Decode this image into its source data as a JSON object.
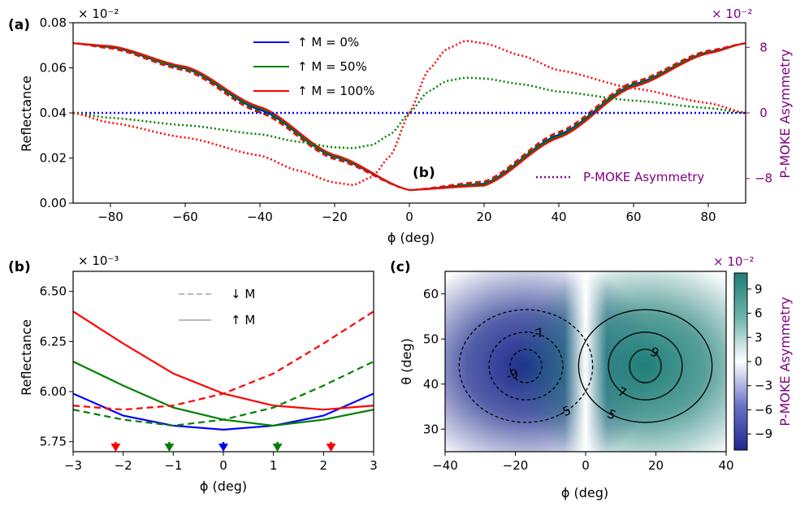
{
  "chart_data": [
    {
      "panel": "(a)",
      "type": "line",
      "xlabel": "ϕ (deg)",
      "ylabel": "Reflectance",
      "y2label": "P-MOKE Asymmetry",
      "xlim": [
        -90,
        90
      ],
      "ylim": [
        0.0,
        0.08
      ],
      "y2lim": [
        -11,
        11
      ],
      "x_ticks": [
        "−80",
        "−60",
        "−40",
        "−20",
        "0",
        "20",
        "40",
        "60",
        "80"
      ],
      "y_ticks": [
        "0.00",
        "0.02",
        "0.04",
        "0.06",
        "0.08"
      ],
      "y2_ticks": [
        "−8",
        "0",
        "8"
      ],
      "y_multiplier": "× 10⁻²",
      "y2_multiplier": "× 10⁻²",
      "annotation": "(b)",
      "legend": [
        "↑ M = 0%",
        "↑ M = 50%",
        "↑ M = 100%"
      ],
      "legend_asym": "P-MOKE Asymmetry",
      "series": [
        {
          "name": "↑ M = 0%",
          "color": "#0000ff",
          "style": "solid",
          "x": [
            -90,
            -80,
            -60,
            -40,
            -20,
            0,
            20,
            40,
            60,
            80,
            90
          ],
          "values": [
            0.0709,
            0.0692,
            0.0597,
            0.0414,
            0.0204,
            0.0058,
            0.0086,
            0.0303,
            0.0527,
            0.067,
            0.0709
          ]
        },
        {
          "name": "↑ M = 50%",
          "color": "#008000",
          "style": "solid",
          "x": [
            -90,
            -80,
            -60,
            -40,
            -20,
            0,
            20,
            40,
            60,
            80,
            90
          ],
          "values": [
            0.0709,
            0.0694,
            0.0601,
            0.042,
            0.0208,
            0.0058,
            0.0082,
            0.0297,
            0.0522,
            0.0667,
            0.0709
          ]
        },
        {
          "name": "↑ M = 100%",
          "color": "#ff0000",
          "style": "solid",
          "x": [
            -90,
            -80,
            -60,
            -40,
            -20,
            0,
            20,
            40,
            60,
            80,
            90
          ],
          "values": [
            0.0709,
            0.0697,
            0.0606,
            0.0427,
            0.0213,
            0.0058,
            0.0077,
            0.029,
            0.0516,
            0.0664,
            0.0709
          ]
        },
        {
          "name": "↓ M = 50%",
          "color": "#008000",
          "style": "dashed",
          "x": [
            -90,
            -80,
            -60,
            -40,
            -20,
            0,
            20,
            40,
            60,
            80,
            90
          ],
          "values": [
            0.0709,
            0.0689,
            0.0593,
            0.0408,
            0.0199,
            0.0058,
            0.0091,
            0.0309,
            0.0532,
            0.0673,
            0.0709
          ]
        },
        {
          "name": "↓ M = 100%",
          "color": "#ff0000",
          "style": "dashed",
          "x": [
            -90,
            -80,
            -60,
            -40,
            -20,
            0,
            20,
            40,
            60,
            80,
            90
          ],
          "values": [
            0.0709,
            0.0686,
            0.0588,
            0.0401,
            0.0194,
            0.0058,
            0.0096,
            0.0316,
            0.0538,
            0.0677,
            0.0709
          ]
        }
      ],
      "asymmetry_series": [
        {
          "name": "P-MOKE Asymmetry M = 0%",
          "color": "#0000ff",
          "x": [
            -90,
            0,
            90
          ],
          "values": [
            0,
            0,
            0
          ]
        },
        {
          "name": "P-MOKE Asymmetry M = 50%",
          "color": "#008000",
          "x": [
            -90,
            -80,
            -60,
            -40,
            -30,
            -20,
            -15,
            -10,
            -5,
            0,
            5,
            10,
            15,
            20,
            30,
            40,
            60,
            80,
            90
          ],
          "values": [
            0,
            -0.6,
            -1.5,
            -2.6,
            -3.5,
            -4.2,
            -4.3,
            -3.9,
            -2.6,
            0,
            2.6,
            3.9,
            4.3,
            4.2,
            3.5,
            2.6,
            1.5,
            0.6,
            0
          ]
        },
        {
          "name": "P-MOKE Asymmetry M = 100%",
          "color": "#ff0000",
          "x": [
            -90,
            -80,
            -60,
            -40,
            -30,
            -20,
            -15,
            -10,
            -5,
            0,
            5,
            10,
            15,
            20,
            30,
            40,
            60,
            80,
            90
          ],
          "values": [
            0,
            -1.2,
            -3.0,
            -5.2,
            -7.0,
            -8.5,
            -8.8,
            -7.8,
            -5.2,
            0,
            5.2,
            7.8,
            8.8,
            8.5,
            7.0,
            5.2,
            3.0,
            1.2,
            0
          ]
        }
      ]
    },
    {
      "panel": "(b)",
      "type": "line",
      "xlabel": "ϕ (deg)",
      "ylabel": "Reflectance",
      "xlim": [
        -3,
        3
      ],
      "ylim": [
        5.7,
        6.6
      ],
      "x_ticks": [
        "−3",
        "−2",
        "−1",
        "0",
        "1",
        "2",
        "3"
      ],
      "y_ticks": [
        "5.75",
        "6.00",
        "6.25",
        "6.50"
      ],
      "y_multiplier": "× 10⁻³",
      "legend": [
        "↓ M",
        "↑ M"
      ],
      "series": [
        {
          "name": "↑ M = 0%",
          "color": "#0000ff",
          "style": "solid",
          "x": [
            -3,
            -2,
            -1,
            0,
            1,
            2,
            3
          ],
          "values": [
            5.99,
            5.88,
            5.83,
            5.81,
            5.83,
            5.88,
            5.99
          ]
        },
        {
          "name": "↑ M = 50%",
          "color": "#008000",
          "style": "solid",
          "x": [
            -3,
            -2,
            -1,
            0,
            1,
            2,
            3
          ],
          "values": [
            6.15,
            6.03,
            5.92,
            5.86,
            5.83,
            5.86,
            5.91
          ]
        },
        {
          "name": "↑ M = 100%",
          "color": "#ff0000",
          "style": "solid",
          "x": [
            -3,
            -2,
            -1,
            0,
            1,
            2,
            3
          ],
          "values": [
            6.4,
            6.24,
            6.09,
            5.99,
            5.93,
            5.91,
            5.93
          ]
        },
        {
          "name": "↓ M = 50%",
          "color": "#008000",
          "style": "dashed",
          "x": [
            -3,
            -2,
            -1,
            0,
            1,
            2,
            3
          ],
          "values": [
            5.91,
            5.86,
            5.83,
            5.86,
            5.92,
            6.03,
            6.15
          ]
        },
        {
          "name": "↓ M = 100%",
          "color": "#ff0000",
          "style": "dashed",
          "x": [
            -3,
            -2,
            -1,
            0,
            1,
            2,
            3
          ],
          "values": [
            5.93,
            5.91,
            5.93,
            5.99,
            6.09,
            6.24,
            6.4
          ]
        }
      ],
      "minima_markers": [
        {
          "x": -2.15,
          "color": "#ff0000"
        },
        {
          "x": -1.08,
          "color": "#008000"
        },
        {
          "x": 0,
          "color": "#0000ff"
        },
        {
          "x": 1.08,
          "color": "#008000"
        },
        {
          "x": 2.15,
          "color": "#ff0000"
        }
      ]
    },
    {
      "panel": "(c)",
      "type": "heatmap",
      "xlabel": "ϕ (deg)",
      "ylabel": "θ (deg)",
      "colorbar_label": "P-MOKE Asymmetry",
      "colorbar_multiplier": "× 10⁻²",
      "xlim": [
        -40,
        40
      ],
      "ylim": [
        25,
        65
      ],
      "x_ticks": [
        "−40",
        "−20",
        "0",
        "20",
        "40"
      ],
      "y_ticks": [
        "30",
        "40",
        "50",
        "60"
      ],
      "colorbar_ticks": [
        "−9",
        "−6",
        "−3",
        "0",
        "3",
        "6",
        "9"
      ],
      "colorbar_range": [
        -11,
        11
      ],
      "extrema": [
        {
          "phi": -17,
          "theta": 44,
          "value": -10.5
        },
        {
          "phi": 17,
          "theta": 44,
          "value": 10.5
        }
      ],
      "contour_levels": [
        {
          "value": -9,
          "label": "-9",
          "style": "dashed"
        },
        {
          "value": -7,
          "label": "-7",
          "style": "dashed"
        },
        {
          "value": -5,
          "label": "-5",
          "style": "dashed"
        },
        {
          "value": 5,
          "label": "5",
          "style": "solid"
        },
        {
          "value": 7,
          "label": "7",
          "style": "solid"
        },
        {
          "value": 9,
          "label": "9",
          "style": "solid"
        }
      ]
    }
  ],
  "colors": {
    "purple": "#800080",
    "teal": "#1f7f78",
    "navy": "#1c2a8c"
  }
}
